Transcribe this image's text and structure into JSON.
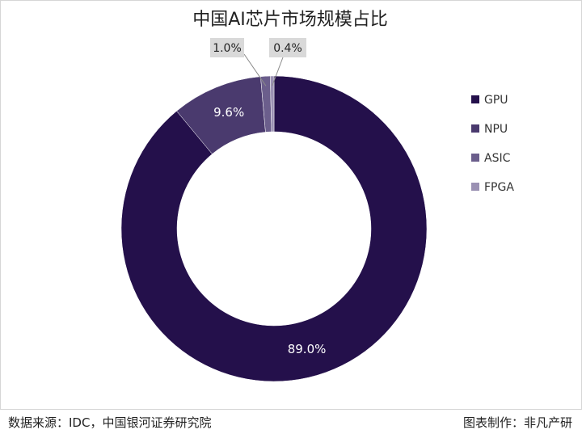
{
  "chart_data": {
    "type": "pie",
    "title": "中国AI芯片市场规模占比",
    "categories": [
      "GPU",
      "NPU",
      "ASIC",
      "FPGA"
    ],
    "values": [
      89.0,
      9.6,
      1.0,
      0.4
    ],
    "value_labels": [
      "89.0%",
      "9.6%",
      "1.0%",
      "0.4%"
    ],
    "colors": [
      "#24104b",
      "#4a3a6e",
      "#6b5e8c",
      "#9b91b3"
    ],
    "donut": true,
    "legend_position": "right"
  },
  "footer": {
    "source": "数据来源：IDC，中国银河证券研究院",
    "maker": "图表制作：非凡产研"
  }
}
